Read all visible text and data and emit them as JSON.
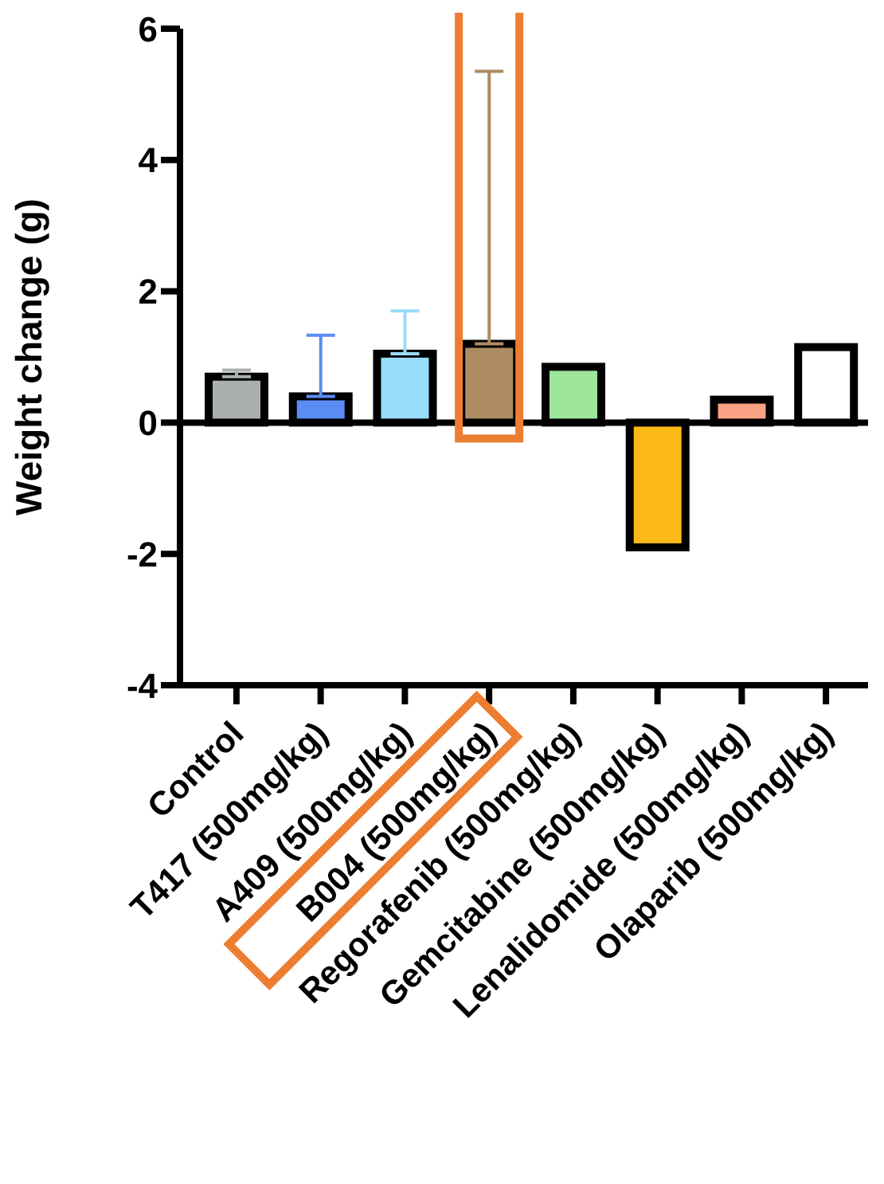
{
  "chart_data": {
    "type": "bar",
    "ylabel": "Weight change (g)",
    "categories": [
      "Control",
      "T417 (500mg/kg)",
      "A409 (500mg/kg)",
      "B004 (500mg/kg)",
      "Regorafenib (500mg/kg)",
      "Gemcitabine (500mg/kg)",
      "Lenalidomide (500mg/kg)",
      "Olaparib (500mg/kg)"
    ],
    "values": [
      0.7,
      0.4,
      1.05,
      1.2,
      0.85,
      -1.9,
      0.35,
      1.15
    ],
    "errors": [
      [
        0.7,
        0.8
      ],
      [
        0.4,
        1.33
      ],
      [
        1.05,
        1.7
      ],
      [
        1.2,
        5.35
      ],
      null,
      null,
      null,
      null
    ],
    "colors": [
      "#a9b0ad",
      "#5b8cf5",
      "#9adcfc",
      "#ad8c62",
      "#9ee69a",
      "#fdb918",
      "#f9a283",
      "#ffffff"
    ],
    "ylim": [
      -4,
      6
    ],
    "yticks": [
      -4,
      -2,
      0,
      2,
      4,
      6
    ],
    "ref_lines": [
      {
        "axis": "y",
        "value": 0,
        "color": "#000000"
      }
    ],
    "grid": false,
    "legend": false
  }
}
